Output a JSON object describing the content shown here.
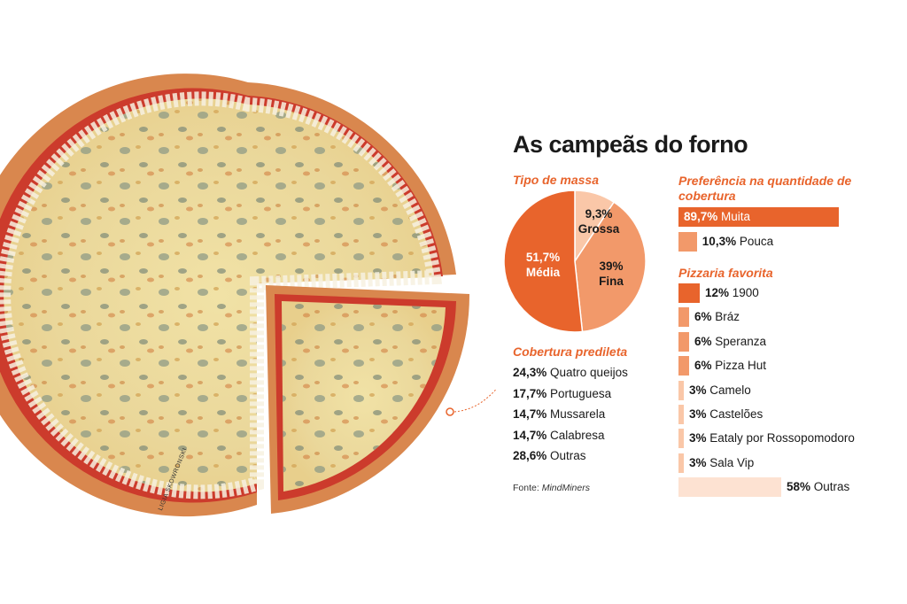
{
  "title": "As campeãs do forno",
  "credit": "LIGIA SKOWRONSKI",
  "source": {
    "prefix": "Fonte:",
    "name": "MindMiners"
  },
  "colors": {
    "accent": "#e8642c",
    "mid": "#f2996a",
    "light": "#fac7a8",
    "pale": "#fde2d2"
  },
  "chart_data": [
    {
      "type": "pie",
      "title": "Tipo de massa",
      "slices": [
        {
          "label": "Grossa",
          "value": 9.3,
          "text": "9,3%"
        },
        {
          "label": "Fina",
          "value": 39,
          "text": "39%"
        },
        {
          "label": "Média",
          "value": 51.7,
          "text": "51,7%"
        }
      ]
    },
    {
      "type": "table",
      "title": "Cobertura predileta",
      "rows": [
        {
          "value": "24,3%",
          "label": "Quatro queijos"
        },
        {
          "value": "17,7%",
          "label": "Portuguesa"
        },
        {
          "value": "14,7%",
          "label": "Mussarela"
        },
        {
          "value": "14,7%",
          "label": "Calabresa"
        },
        {
          "value": "28,6%",
          "label": "Outras"
        }
      ]
    },
    {
      "type": "bar",
      "title": "Preferência na quantidade de cobertura",
      "categories": [
        "Muita",
        "Pouca"
      ],
      "values": [
        89.7,
        10.3
      ],
      "value_labels": [
        "89,7%",
        "10,3%"
      ]
    },
    {
      "type": "bar",
      "title": "Pizzaria favorita",
      "categories": [
        "1900",
        "Bráz",
        "Speranza",
        "Pizza Hut",
        "Camelo",
        "Castelões",
        "Eataly por Rossopomodoro",
        "Sala Vip",
        "Outras"
      ],
      "values": [
        12,
        6,
        6,
        6,
        3,
        3,
        3,
        3,
        58
      ],
      "value_labels": [
        "12%",
        "6%",
        "6%",
        "6%",
        "3%",
        "3%",
        "3%",
        "3%",
        "58%"
      ]
    }
  ]
}
